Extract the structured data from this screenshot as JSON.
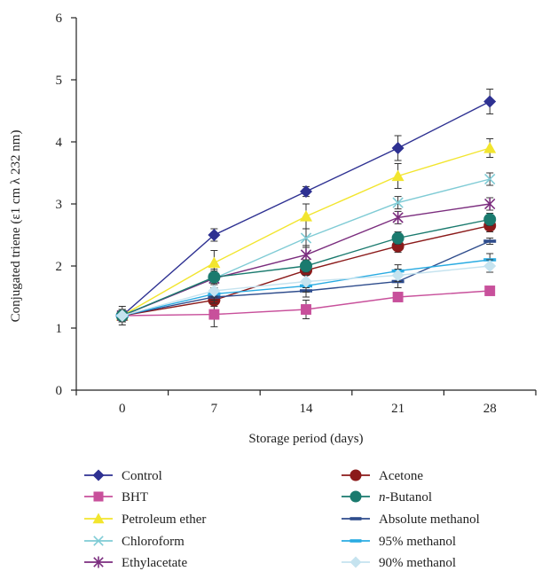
{
  "chart_data": {
    "type": "line",
    "xlabel": "Storage period (days)",
    "ylabel": "Conjugated triene (ε1 cm λ 232 nm)",
    "categories": [
      "0",
      "7",
      "14",
      "21",
      "28"
    ],
    "ylim": [
      0,
      6
    ],
    "yticks": [
      "0",
      "1",
      "2",
      "3",
      "4",
      "5",
      "6"
    ],
    "grid": false,
    "legend_placement": "bottom",
    "series": [
      {
        "name": "Control",
        "values": [
          1.2,
          2.5,
          3.2,
          3.9,
          4.65
        ],
        "errors": [
          0.15,
          0.1,
          0.08,
          0.2,
          0.2
        ],
        "color": "#2e3192",
        "marker": "diamond"
      },
      {
        "name": "BHT",
        "values": [
          1.2,
          1.22,
          1.3,
          1.5,
          1.6
        ],
        "errors": [
          0.1,
          0.2,
          0.15,
          0.05,
          0.05
        ],
        "color": "#c8509b",
        "marker": "square"
      },
      {
        "name": "Petroleum ether",
        "values": [
          1.2,
          2.05,
          2.8,
          3.45,
          3.9
        ],
        "errors": [
          0.1,
          0.2,
          0.2,
          0.2,
          0.15
        ],
        "color": "#f2e52e",
        "marker": "triangle"
      },
      {
        "name": "Chloroform",
        "values": [
          1.2,
          1.8,
          2.45,
          3.02,
          3.4
        ],
        "errors": [
          0.1,
          0.15,
          0.15,
          0.1,
          0.1
        ],
        "color": "#7fcbd5",
        "marker": "x"
      },
      {
        "name": "Ethylacetate",
        "values": [
          1.2,
          1.8,
          2.18,
          2.78,
          3.0
        ],
        "errors": [
          0.1,
          0.1,
          0.15,
          0.1,
          0.1
        ],
        "color": "#7b2d7e",
        "marker": "asterisk"
      },
      {
        "name": "Acetone",
        "values": [
          1.2,
          1.45,
          1.93,
          2.32,
          2.65
        ],
        "errors": [
          0.1,
          0.1,
          0.15,
          0.1,
          0.1
        ],
        "color": "#8b1a1a",
        "marker": "circle"
      },
      {
        "name": "n-Butanol",
        "values": [
          1.2,
          1.82,
          2.0,
          2.45,
          2.75
        ],
        "errors": [
          0.1,
          0.1,
          0.1,
          0.1,
          0.1
        ],
        "color": "#1a7a6e",
        "marker": "circle"
      },
      {
        "name": "Absolute methanol",
        "values": [
          1.2,
          1.5,
          1.6,
          1.75,
          2.4
        ],
        "errors": [
          0.1,
          0.1,
          0.1,
          0.1,
          0.05
        ],
        "color": "#2e4c8c",
        "marker": "dash"
      },
      {
        "name": "95% methanol",
        "values": [
          1.2,
          1.55,
          1.68,
          1.92,
          2.1
        ],
        "errors": [
          0.1,
          0.1,
          0.1,
          0.1,
          0.1
        ],
        "color": "#29abe2",
        "marker": "dash"
      },
      {
        "name": "90% methanol",
        "values": [
          1.2,
          1.6,
          1.75,
          1.85,
          2.0
        ],
        "errors": [
          0.1,
          0.1,
          0.1,
          0.1,
          0.1
        ],
        "color": "#c5e3ef",
        "marker": "diamond"
      }
    ]
  }
}
